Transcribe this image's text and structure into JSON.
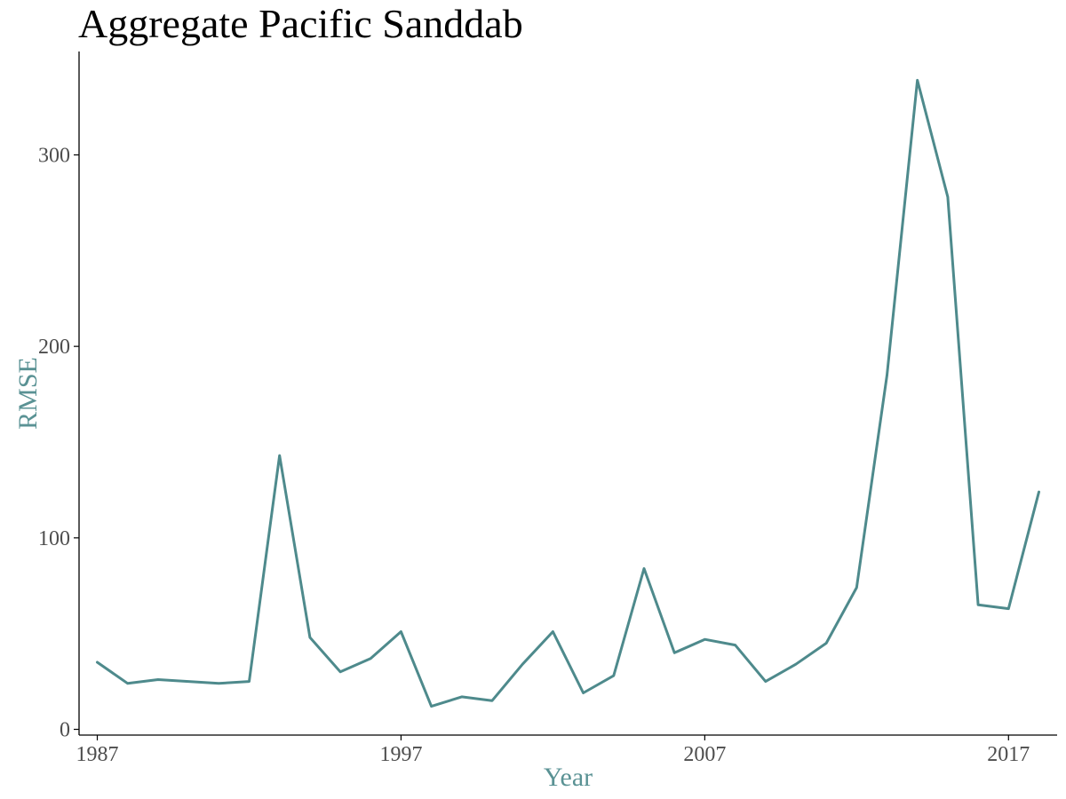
{
  "chart_data": {
    "type": "line",
    "title": "Aggregate Pacific Sanddab",
    "xlabel": "Year",
    "ylabel": "RMSE",
    "xlim": [
      1986.4,
      2018.6
    ],
    "ylim": [
      -3,
      354
    ],
    "x_ticks": [
      1987,
      1997,
      2007,
      2017
    ],
    "y_ticks": [
      0,
      100,
      200,
      300
    ],
    "grid": false,
    "legend": "none",
    "colors": {
      "line": "#4e8a8c",
      "axis_title": "#5a9294",
      "tick_label": "#4d4d4d",
      "axis_line": "#000000"
    },
    "series": [
      {
        "x": [
          1987,
          1988,
          1989,
          1990,
          1991,
          1992,
          1993,
          1994,
          1995,
          1996,
          1997,
          1998,
          1999,
          2000,
          2001,
          2002,
          2003,
          2004,
          2005,
          2006,
          2007,
          2008,
          2009,
          2010,
          2011,
          2012,
          2013,
          2014,
          2015,
          2016,
          2017,
          2018
        ],
        "values": [
          35,
          24,
          26,
          25,
          24,
          25,
          143,
          48,
          30,
          37,
          51,
          12,
          17,
          15,
          34,
          51,
          19,
          28,
          84,
          40,
          47,
          44,
          25,
          34,
          45,
          74,
          185,
          339,
          278,
          65,
          63,
          124
        ]
      }
    ]
  }
}
